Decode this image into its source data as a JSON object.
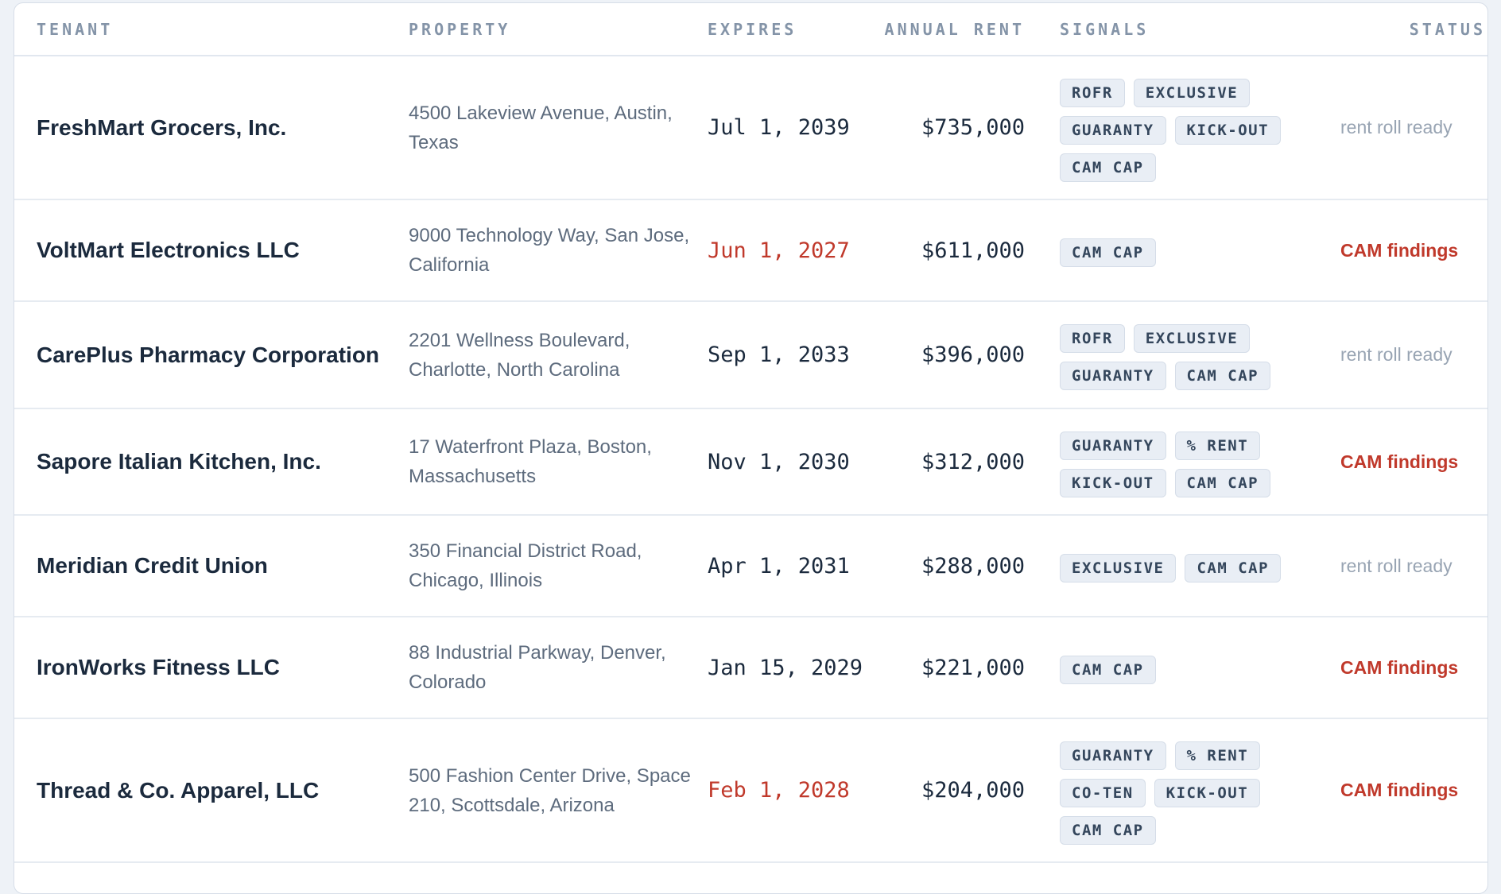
{
  "table": {
    "headers": {
      "tenant": "TENANT",
      "property": "PROPERTY",
      "expires": "EXPIRES",
      "annual_rent": "ANNUAL RENT",
      "signals": "SIGNALS",
      "status": "STATUS"
    },
    "rows": [
      {
        "tenant": "FreshMart Grocers, Inc.",
        "property": "4500 Lakeview Avenue, Austin, Texas",
        "expires": "Jul 1, 2039",
        "expires_flag": false,
        "annual_rent": "$735,000",
        "signals": [
          "ROFR",
          "EXCLUSIVE",
          "GUARANTY",
          "KICK-OUT",
          "CAM CAP"
        ],
        "status": "rent roll ready",
        "status_type": "ok"
      },
      {
        "tenant": "VoltMart Electronics LLC",
        "property": "9000 Technology Way, San Jose, California",
        "expires": "Jun 1, 2027",
        "expires_flag": true,
        "annual_rent": "$611,000",
        "signals": [
          "CAM CAP"
        ],
        "status": "CAM findings",
        "status_type": "bad"
      },
      {
        "tenant": "CarePlus Pharmacy Corporation",
        "property": "2201 Wellness Boulevard, Charlotte, North Carolina",
        "expires": "Sep 1, 2033",
        "expires_flag": false,
        "annual_rent": "$396,000",
        "signals": [
          "ROFR",
          "EXCLUSIVE",
          "GUARANTY",
          "CAM CAP"
        ],
        "status": "rent roll ready",
        "status_type": "ok"
      },
      {
        "tenant": "Sapore Italian Kitchen, Inc.",
        "property": "17 Waterfront Plaza, Boston, Massachusetts",
        "expires": "Nov 1, 2030",
        "expires_flag": false,
        "annual_rent": "$312,000",
        "signals": [
          "GUARANTY",
          "% RENT",
          "KICK-OUT",
          "CAM CAP"
        ],
        "status": "CAM findings",
        "status_type": "bad"
      },
      {
        "tenant": "Meridian Credit Union",
        "property": "350 Financial District Road, Chicago, Illinois",
        "expires": "Apr 1, 2031",
        "expires_flag": false,
        "annual_rent": "$288,000",
        "signals": [
          "EXCLUSIVE",
          "CAM CAP"
        ],
        "status": "rent roll ready",
        "status_type": "ok"
      },
      {
        "tenant": "IronWorks Fitness LLC",
        "property": "88 Industrial Parkway, Denver, Colorado",
        "expires": "Jan 15, 2029",
        "expires_flag": false,
        "annual_rent": "$221,000",
        "signals": [
          "CAM CAP"
        ],
        "status": "CAM findings",
        "status_type": "bad"
      },
      {
        "tenant": "Thread & Co. Apparel, LLC",
        "property": "500 Fashion Center Drive, Space 210, Scottsdale, Arizona",
        "expires": "Feb 1, 2028",
        "expires_flag": true,
        "annual_rent": "$204,000",
        "signals": [
          "GUARANTY",
          "% RENT",
          "CO-TEN",
          "KICK-OUT",
          "CAM CAP"
        ],
        "status": "CAM findings",
        "status_type": "bad"
      }
    ]
  },
  "colors": {
    "text_primary": "#1b2a3d",
    "text_secondary": "#5d6b7d",
    "header": "#8494a8",
    "warning": "#c0392b",
    "status_ok": "#98a4b3",
    "tag_bg": "#e9eef5"
  }
}
